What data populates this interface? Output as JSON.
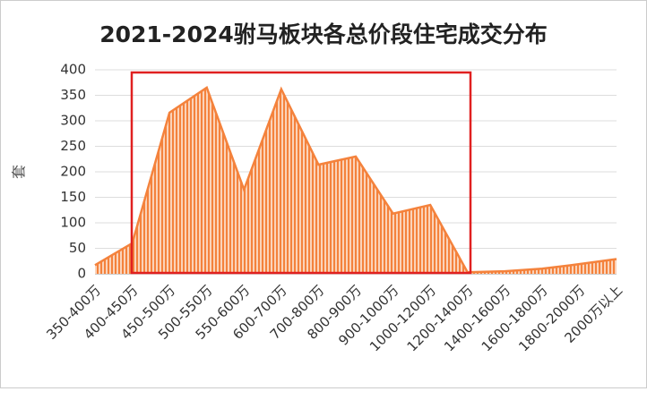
{
  "chart_data": {
    "type": "area",
    "title": "2021-2024驸马板块各总价段住宅成交分布",
    "y_label": "套",
    "categories": [
      "350-400万",
      "400-450万",
      "450-500万",
      "500-550万",
      "550-600万",
      "600-700万",
      "700-800万",
      "800-900万",
      "900-1000万",
      "1000-1200万",
      "1200-1400万",
      "1400-1600万",
      "1600-1800万",
      "1800-2000万",
      "2000万以上"
    ],
    "values": [
      17,
      60,
      316,
      365,
      165,
      362,
      214,
      230,
      118,
      135,
      3,
      5,
      10,
      19,
      29
    ],
    "color": "#f4823c",
    "ylim": [
      0,
      400
    ],
    "yticks": [
      0,
      50,
      100,
      150,
      200,
      250,
      300,
      350,
      400
    ],
    "grid": true
  }
}
